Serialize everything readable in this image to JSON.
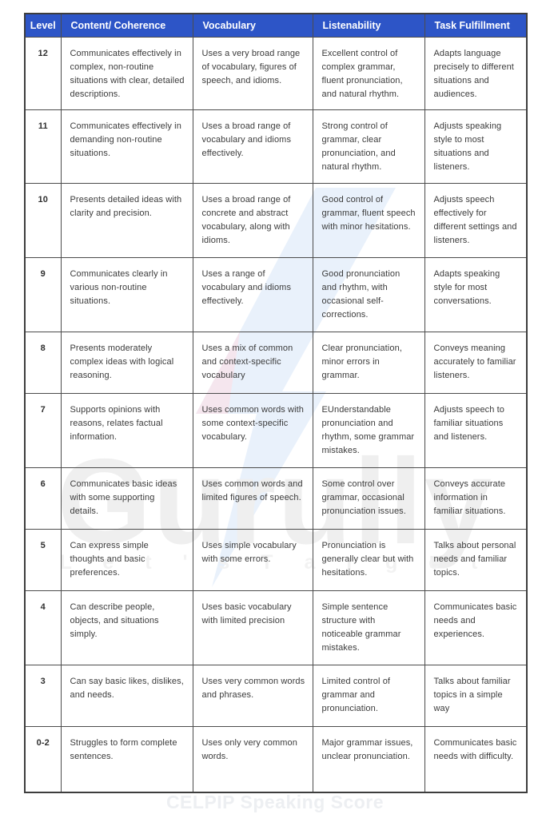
{
  "table": {
    "columns": [
      "Level",
      "Content/ Coherence",
      "Vocabulary",
      "Listenability",
      "Task Fulfillment"
    ],
    "rows": [
      {
        "level": "12",
        "content": "Communicates effectively in complex, non-routine situations with clear, detailed descriptions.",
        "vocabulary": "Uses a very broad range of vocabulary, figures of speech, and idioms.",
        "listenability": "Excellent control of complex grammar, fluent pronunciation, and natural rhythm.",
        "task": "Adapts language precisely to different situations and audiences."
      },
      {
        "level": "11",
        "content": "Communicates effectively in demanding non-routine situations.",
        "vocabulary": "Uses a broad range of vocabulary and idioms effectively.",
        "listenability": "Strong control of grammar, clear pronunciation, and natural rhythm.",
        "task": "Adjusts speaking style to most situations and listeners."
      },
      {
        "level": "10",
        "content": "Presents detailed ideas with clarity and precision.",
        "vocabulary": "Uses a broad range of concrete and abstract vocabulary, along with idioms.",
        "listenability": "Good control of grammar, fluent speech with minor hesitations.",
        "task": "Adjusts speech effectively for different settings and listeners."
      },
      {
        "level": "9",
        "content": "Communicates clearly in various non-routine situations.",
        "vocabulary": "Uses a range of vocabulary and idioms effectively.",
        "listenability": "Good pronunciation and rhythm, with occasional self-corrections.",
        "task": "Adapts speaking style for most conversations."
      },
      {
        "level": "8",
        "content": "Presents moderately complex ideas with logical reasoning.",
        "vocabulary": "Uses a mix of common and context-specific vocabulary",
        "listenability": "Clear pronunciation, minor errors in grammar.",
        "task": "Conveys meaning accurately to familiar listeners."
      },
      {
        "level": "7",
        "content": "Supports opinions with reasons, relates factual information.",
        "vocabulary": "Uses common words with some context-specific vocabulary.",
        "listenability": "EUnderstandable pronunciation and rhythm, some grammar mistakes.",
        "task": "Adjusts speech to familiar situations and listeners."
      },
      {
        "level": "6",
        "content": "Communicates basic ideas with some supporting details.",
        "vocabulary": "Uses common words and limited figures of speech.",
        "listenability": "Some control over grammar, occasional pronunciation issues.",
        "task": "Conveys accurate information in familiar situations."
      },
      {
        "level": "5",
        "content": "Can express simple thoughts and basic preferences.",
        "vocabulary": "Uses simple vocabulary with some errors.",
        "listenability": "Pronunciation is generally clear but with hesitations.",
        "task": "Talks about personal needs and familiar topics."
      },
      {
        "level": "4",
        "content": "Can describe people, objects, and situations simply.",
        "vocabulary": "Uses basic vocabulary with limited precision",
        "listenability": "Simple sentence structure with noticeable grammar mistakes.",
        "task": "Communicates basic needs and experiences."
      },
      {
        "level": "3",
        "content": "Can say basic likes, dislikes, and needs.",
        "vocabulary": "Uses very common words and phrases.",
        "listenability": "Limited control of grammar and pronunciation.",
        "task": "Talks about familiar topics in a simple way"
      },
      {
        "level": "0-2",
        "content": "Struggles to form complete sentences.",
        "vocabulary": "Uses only very common words.",
        "listenability": "Major grammar issues, unclear pronunciation.",
        "task": "Communicates basic needs with difficulty."
      }
    ]
  },
  "watermark": {
    "brand": "Gurully",
    "tagline": "L e t ' s   T a r g e t"
  },
  "footer": {
    "caption": "CELPIP Speaking Score"
  },
  "colors": {
    "header_bg": "#2d55c7",
    "header_text": "#ffffff",
    "body_text": "#3b3b3b",
    "border": "#4c4c4c",
    "watermark_gray": "#efefef",
    "watermark_blue": "#e9f1fb",
    "watermark_pink": "#f5e6ee"
  }
}
